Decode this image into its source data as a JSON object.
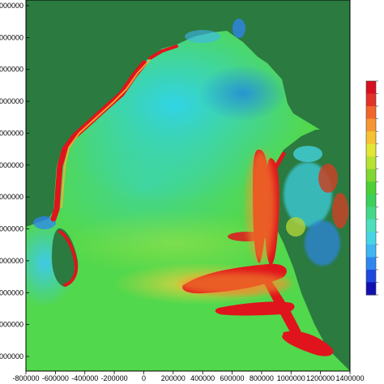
{
  "map": {
    "x_axis": {
      "ticks": [
        "-800000",
        "-600000",
        "-400000",
        "-200000",
        "0",
        "200000",
        "400000",
        "600000",
        "800000",
        "1000000",
        "1200000",
        "1400000"
      ]
    },
    "y_axis": {
      "ticks": [
        "000000",
        "000000",
        "000000",
        "000000",
        "000000",
        "000000",
        "000000",
        "000000",
        "000000",
        "000000",
        "000000",
        "000000"
      ]
    },
    "colorbar": {
      "colors": [
        "#1010b0",
        "#1e46e0",
        "#2f86ee",
        "#3fb5f2",
        "#45d6e6",
        "#4ce0bf",
        "#44d98a",
        "#3bd15a",
        "#4bd035",
        "#7fd832",
        "#b6e232",
        "#e3e633",
        "#f6c233",
        "#f69632",
        "#f2662d",
        "#e2322a",
        "#d80f1f"
      ]
    },
    "colors": {
      "land": "#2b7a3f",
      "sea_green": "#55d94a",
      "cyan": "#33ddd8",
      "blue": "#1f6fe0",
      "yellow": "#e6e23a",
      "red": "#e0141c"
    }
  }
}
